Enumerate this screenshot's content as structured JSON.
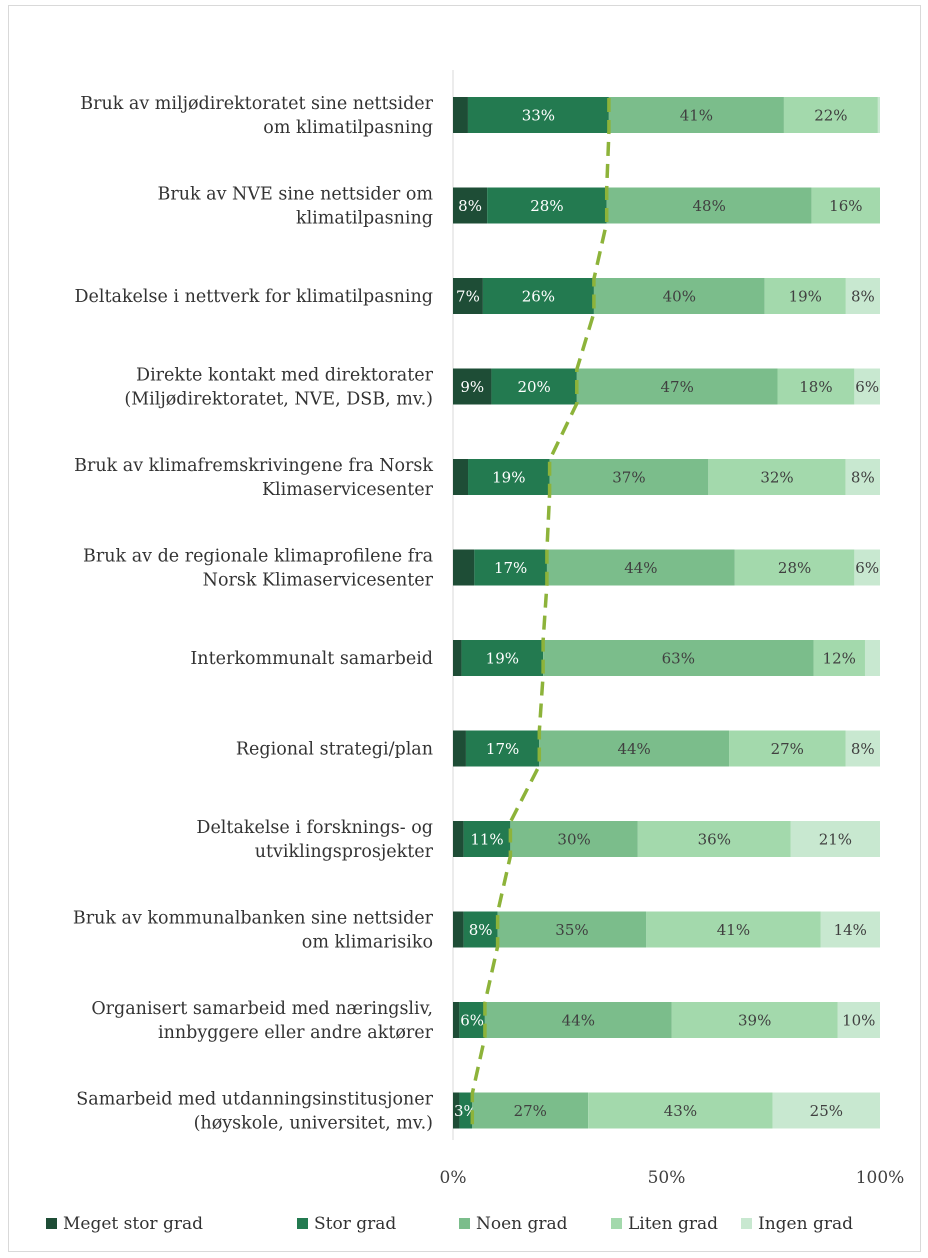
{
  "chart_data": {
    "type": "bar",
    "orientation": "horizontal",
    "stacked": "percent",
    "categories": [
      [
        "Bruk av miljødirektoratet sine nettsider",
        "om klimatilpasning"
      ],
      [
        "Bruk av NVE sine nettsider om",
        "klimatilpasning"
      ],
      [
        "Deltakelse i nettverk for klimatilpasning"
      ],
      [
        "Direkte kontakt med direktorater",
        "(Miljødirektoratet, NVE, DSB, mv.)"
      ],
      [
        "Bruk av klimafremskrivingene fra Norsk",
        "Klimaservicesenter"
      ],
      [
        "Bruk av de regionale klimaprofilene fra",
        "Norsk Klimaservicesenter"
      ],
      [
        "Interkommunalt samarbeid"
      ],
      [
        "Regional strategi/plan"
      ],
      [
        "Deltakelse i forsknings- og",
        "utviklingsprosjekter"
      ],
      [
        "Bruk av kommunalbanken sine nettsider",
        "om klimarisiko"
      ],
      [
        "Organisert samarbeid med næringsliv,",
        "innbyggere eller andre aktører"
      ],
      [
        "Samarbeid med utdanningsinstitusjoner",
        "(høyskole, universitet, mv.)"
      ]
    ],
    "series": [
      {
        "name": "Meget stor grad",
        "color": "#1e4d36",
        "values": [
          3.5,
          8,
          7,
          9,
          3.5,
          5,
          2,
          3,
          2.5,
          2.5,
          1.5,
          1.5
        ]
      },
      {
        "name": "Stor grad",
        "color": "#237a50",
        "values": [
          33,
          28,
          26,
          20,
          19,
          17,
          19,
          17,
          11,
          8,
          6,
          3
        ]
      },
      {
        "name": "Noen grad",
        "color": "#7bbd8b",
        "values": [
          41,
          48,
          40,
          47,
          37,
          44,
          63,
          44,
          30,
          35,
          44,
          27
        ]
      },
      {
        "name": "Liten grad",
        "color": "#a3d9ac",
        "values": [
          22,
          16,
          19,
          18,
          32,
          28,
          12,
          27,
          36,
          41,
          39,
          43
        ]
      },
      {
        "name": "Ingen grad",
        "color": "#c8e8d0",
        "values": [
          0.5,
          0,
          8,
          6,
          8,
          6,
          3.5,
          8,
          21,
          14,
          10,
          25
        ]
      }
    ],
    "data_labels": [
      [
        "",
        "33%",
        "41%",
        "22%",
        ""
      ],
      [
        "8%",
        "28%",
        "48%",
        "16%",
        ""
      ],
      [
        "7%",
        "26%",
        "40%",
        "19%",
        "8%"
      ],
      [
        "9%",
        "20%",
        "47%",
        "18%",
        "6%"
      ],
      [
        "",
        "19%",
        "37%",
        "32%",
        "8%"
      ],
      [
        "",
        "17%",
        "44%",
        "28%",
        "6%"
      ],
      [
        "",
        "19%",
        "63%",
        "12%",
        ""
      ],
      [
        "",
        "17%",
        "44%",
        "27%",
        "8%"
      ],
      [
        "",
        "11%",
        "30%",
        "36%",
        "21%"
      ],
      [
        "",
        "8%",
        "35%",
        "41%",
        "14%"
      ],
      [
        "",
        "6%",
        "44%",
        "39%",
        "10%"
      ],
      [
        "",
        "3%",
        "27%",
        "43%",
        "25%"
      ]
    ],
    "xlim": [
      0,
      100
    ],
    "x_ticks": [
      0,
      50,
      100
    ],
    "x_tick_labels": [
      "0%",
      "50%",
      "100%"
    ],
    "grid": false,
    "legend": {
      "placement": "bottom",
      "entries": [
        "Meget stor grad",
        "Stor grad",
        "Noen grad",
        "Liten grad",
        "Ingen grad"
      ]
    },
    "trend_line": {
      "color": "#8db33a",
      "style": "dashed"
    }
  }
}
